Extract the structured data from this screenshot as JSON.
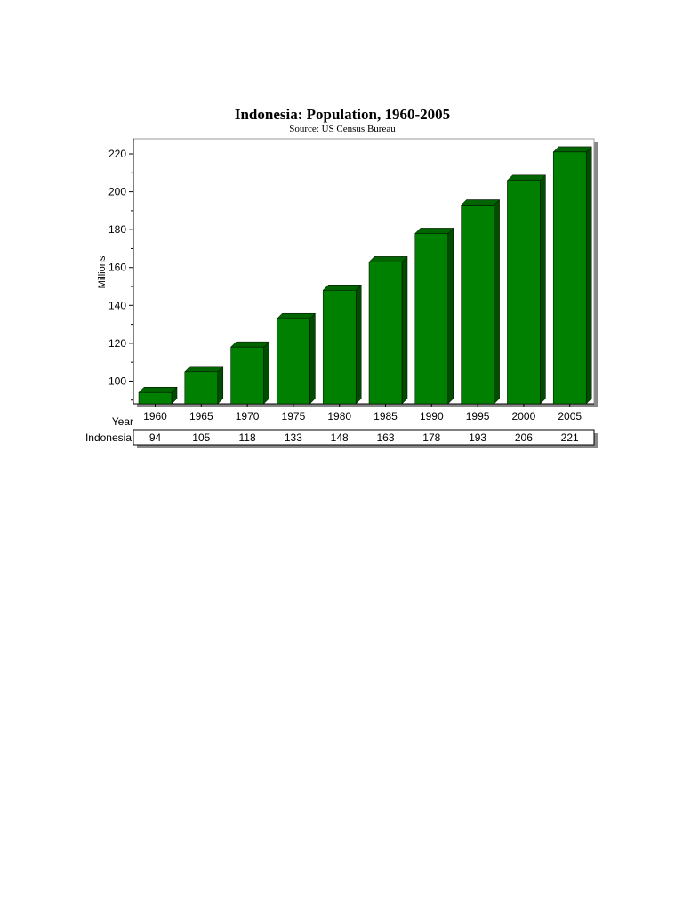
{
  "chart_data": {
    "type": "bar",
    "title": "Indonesia: Population, 1960-2005",
    "subtitle": "Source: US Census Bureau",
    "xlabel": "Year",
    "ylabel": "Millions",
    "categories": [
      "1960",
      "1965",
      "1970",
      "1975",
      "1980",
      "1985",
      "1990",
      "1995",
      "2000",
      "2005"
    ],
    "series": [
      {
        "name": "Indonesia",
        "values": [
          94,
          105,
          118,
          133,
          148,
          163,
          178,
          193,
          206,
          221
        ]
      }
    ],
    "ylim": [
      88,
      228
    ],
    "yticks": [
      100,
      120,
      140,
      160,
      180,
      200,
      220
    ],
    "grid": false,
    "bar_color": "#008000",
    "bar_top_color": "#006400",
    "bar_side_color": "#004d00",
    "data_table": true
  }
}
